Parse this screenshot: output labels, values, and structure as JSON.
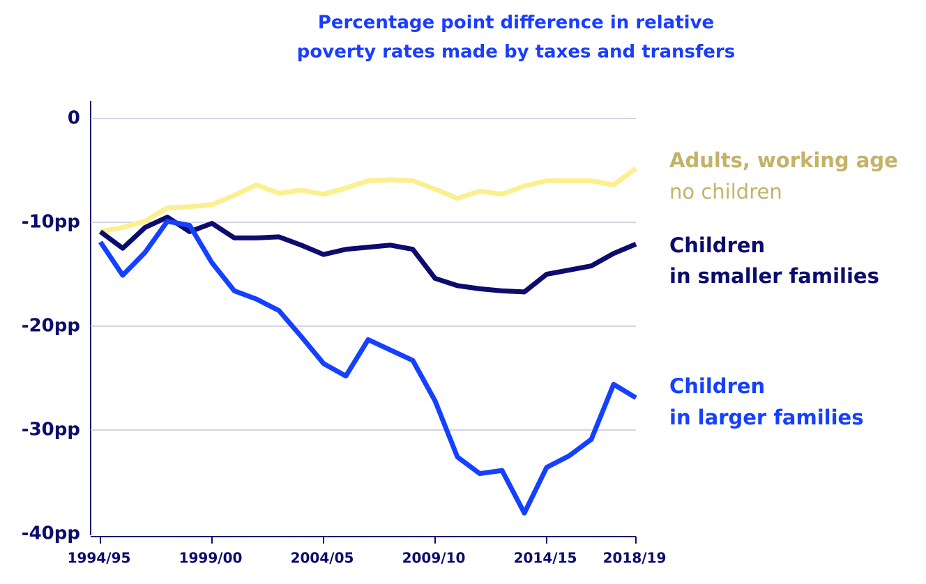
{
  "chart_data": {
    "type": "line",
    "title": [
      "Percentage point difference in relative",
      "poverty rates made by taxes and transfers"
    ],
    "categories": [
      "1994/95",
      null,
      null,
      null,
      null,
      "1999/00",
      null,
      null,
      null,
      null,
      "2004/05",
      null,
      null,
      null,
      null,
      "2009/10",
      null,
      null,
      null,
      null,
      "2014/15",
      null,
      null,
      null,
      "2018/19"
    ],
    "series": [
      {
        "name": "Adults, working age",
        "name_line2": "no children",
        "color": "#fcef8f",
        "label_color": "#c4b268",
        "values": [
          -10.9,
          -10.5,
          -9.9,
          -8.6,
          -8.5,
          -8.3,
          -7.4,
          -6.4,
          -7.2,
          -6.9,
          -7.3,
          -6.7,
          -6.0,
          -5.9,
          -6.0,
          -6.8,
          -7.7,
          -7.0,
          -7.3,
          -6.5,
          -6.0,
          -6.0,
          -6.0,
          -6.4,
          -4.8
        ]
      },
      {
        "name": "Children",
        "name_line2": "in smaller families",
        "color": "#0b0c6e",
        "label_color": "#0b0c6e",
        "values": [
          -10.9,
          -12.5,
          -10.5,
          -9.5,
          -10.9,
          -10.1,
          -11.5,
          -11.5,
          -11.4,
          -12.2,
          -13.1,
          -12.6,
          -12.4,
          -12.2,
          -12.6,
          -15.4,
          -16.1,
          -16.4,
          -16.6,
          -16.7,
          -15.0,
          -14.6,
          -14.2,
          -13.0,
          -12.1
        ]
      },
      {
        "name": "Children",
        "name_line2": "in larger families",
        "color": "#1540ff",
        "label_color": "#1540ff",
        "values": [
          -11.9,
          -15.1,
          -12.9,
          -9.9,
          -10.3,
          -13.9,
          -16.6,
          -17.4,
          -18.5,
          -21.0,
          -23.6,
          -24.8,
          -21.3,
          -22.3,
          -23.3,
          -27.2,
          -32.6,
          -34.2,
          -33.9,
          -38.0,
          -33.6,
          -32.5,
          -30.9,
          -25.6,
          -26.9
        ]
      }
    ],
    "ylim": [
      -40,
      0
    ],
    "yticks": [
      0,
      {
        "value": -10,
        "label": "-10pp"
      },
      {
        "value": -20,
        "label": "-20pp"
      },
      {
        "value": -30,
        "label": "-30pp"
      },
      {
        "value": -40,
        "label": "-40pp"
      }
    ],
    "grid": true
  }
}
